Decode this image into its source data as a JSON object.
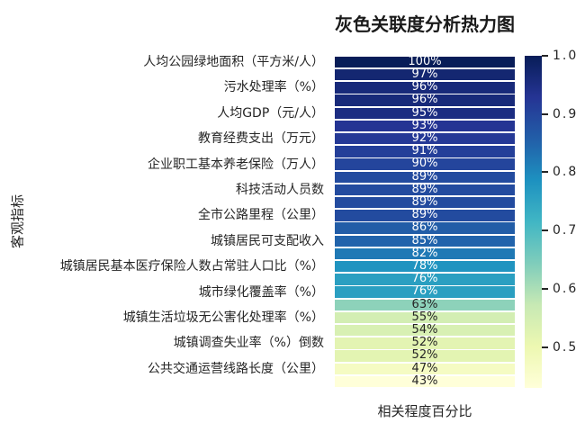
{
  "title": "灰色关联度分析热力图",
  "axes": {
    "xlabel": "相关程度百分比",
    "ylabel": "客观指标"
  },
  "colors": {
    "annotation_light": "#ffffff",
    "annotation_dark": "#262626",
    "tick_text": "#262626",
    "title_text": "#1a1a1a"
  },
  "chart_data": {
    "type": "heatmap",
    "title": "灰色关联度分析热力图",
    "xlabel": "相关程度百分比",
    "ylabel": "客观指标",
    "grid": false,
    "colormap": "YlGnBu",
    "colormap_stops": [
      "#ffffd9",
      "#edf8b1",
      "#c7e9b4",
      "#7fcdbb",
      "#41b6c4",
      "#1d91c0",
      "#225ea8",
      "#253494",
      "#081d58"
    ],
    "vmin": 0.43,
    "vmax": 1.0,
    "colorbar_position": "right",
    "colorbar_ticks": [
      1.0,
      0.9,
      0.8,
      0.7,
      0.6,
      0.5
    ],
    "rows": [
      {
        "label": "人均公园绿地面积（平方米/人）",
        "value": 1.0,
        "annotation": "100%"
      },
      {
        "label": "",
        "value": 0.97,
        "annotation": "97%"
      },
      {
        "label": "污水处理率（%）",
        "value": 0.96,
        "annotation": "96%"
      },
      {
        "label": "",
        "value": 0.96,
        "annotation": "96%"
      },
      {
        "label": "人均GDP（元/人）",
        "value": 0.95,
        "annotation": "95%"
      },
      {
        "label": "",
        "value": 0.93,
        "annotation": "93%"
      },
      {
        "label": "教育经费支出（万元）",
        "value": 0.92,
        "annotation": "92%"
      },
      {
        "label": "",
        "value": 0.91,
        "annotation": "91%"
      },
      {
        "label": "企业职工基本养老保险（万人）",
        "value": 0.9,
        "annotation": "90%"
      },
      {
        "label": "",
        "value": 0.89,
        "annotation": "89%"
      },
      {
        "label": "科技活动人员数",
        "value": 0.89,
        "annotation": "89%"
      },
      {
        "label": "",
        "value": 0.89,
        "annotation": "89%"
      },
      {
        "label": "全市公路里程（公里）",
        "value": 0.89,
        "annotation": "89%"
      },
      {
        "label": "",
        "value": 0.86,
        "annotation": "86%"
      },
      {
        "label": "城镇居民可支配收入",
        "value": 0.85,
        "annotation": "85%"
      },
      {
        "label": "",
        "value": 0.82,
        "annotation": "82%"
      },
      {
        "label": "城镇居民基本医疗保险人数占常驻人口比（%）",
        "value": 0.78,
        "annotation": "78%"
      },
      {
        "label": "",
        "value": 0.76,
        "annotation": "76%"
      },
      {
        "label": "城市绿化覆盖率（%）",
        "value": 0.76,
        "annotation": "76%"
      },
      {
        "label": "",
        "value": 0.63,
        "annotation": "63%"
      },
      {
        "label": "城镇生活垃圾无公害化处理率（%）",
        "value": 0.55,
        "annotation": "55%"
      },
      {
        "label": "",
        "value": 0.54,
        "annotation": "54%"
      },
      {
        "label": "城镇调查失业率（%）倒数",
        "value": 0.52,
        "annotation": "52%"
      },
      {
        "label": "",
        "value": 0.52,
        "annotation": "52%"
      },
      {
        "label": "公共交通运营线路长度（公里）",
        "value": 0.47,
        "annotation": "47%"
      },
      {
        "label": "",
        "value": 0.43,
        "annotation": "43%"
      }
    ]
  }
}
